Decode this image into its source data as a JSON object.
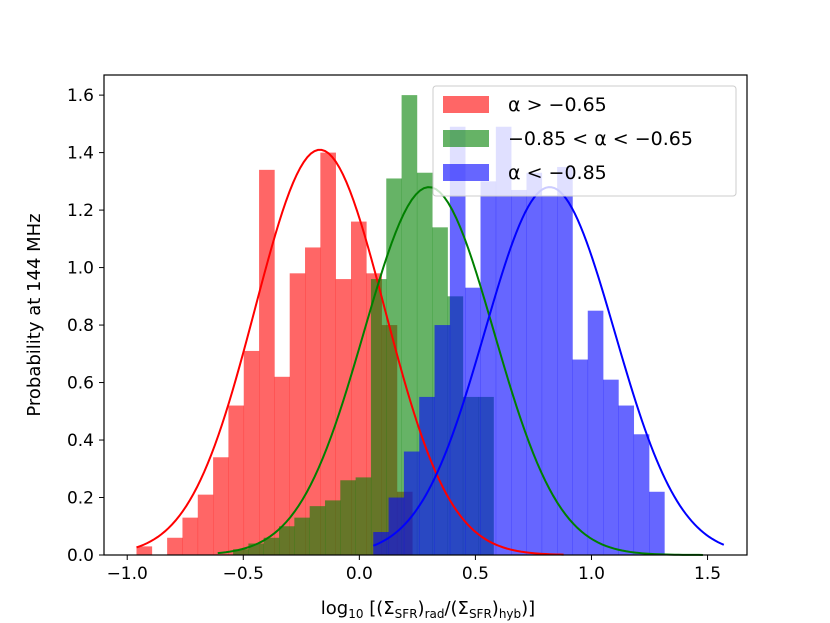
{
  "chart_data": {
    "type": "bar",
    "xlabel": "log₁₀ [(ΣSFR)rad/(ΣSFR)hyb]",
    "ylabel": "Probability at 144 MHz",
    "xlim": [
      -1.1,
      1.67
    ],
    "ylim": [
      0.0,
      1.67
    ],
    "xticks": [
      "−1.0",
      "−0.5",
      "0.0",
      "0.5",
      "1.0",
      "1.5"
    ],
    "yticks": [
      "0.0",
      "0.2",
      "0.4",
      "0.6",
      "0.8",
      "1.0",
      "1.2",
      "1.4",
      "1.6"
    ],
    "grid": false,
    "legend_position": "top-right",
    "series": [
      {
        "name": "α > −0.65",
        "color": "#ff0000",
        "fit_color": "#ff0000",
        "bin_width": 0.066,
        "bins_start": -0.96,
        "values": [
          0.03,
          0.0,
          0.06,
          0.13,
          0.21,
          0.34,
          0.52,
          0.71,
          1.34,
          0.62,
          0.98,
          1.07,
          1.4,
          0.96,
          1.16,
          0.98,
          0.8,
          0.22,
          0.0
        ],
        "fit": {
          "mu": -0.17,
          "sigma": 0.28,
          "peak": 1.41,
          "xmin": -0.96,
          "xmax": 0.88
        }
      },
      {
        "name": "−0.85 < α < −0.65",
        "color": "#008000",
        "fit_color": "#008000",
        "bin_width": 0.066,
        "bins_start": -0.61,
        "values": [
          0.0,
          0.02,
          0.04,
          0.06,
          0.1,
          0.13,
          0.17,
          0.19,
          0.26,
          0.27,
          0.96,
          1.31,
          1.6,
          1.33,
          1.14,
          0.9,
          0.55,
          0.55
        ],
        "fit": {
          "mu": 0.3,
          "sigma": 0.28,
          "peak": 1.28,
          "xmin": -0.61,
          "xmax": 1.48
        }
      },
      {
        "name": "α < −0.85",
        "color": "#0000ff",
        "fit_color": "#0000ff",
        "bin_width": 0.066,
        "bins_start": 0.06,
        "values": [
          0.08,
          0.2,
          0.36,
          0.55,
          0.8,
          1.49,
          0.93,
          1.3,
          1.49,
          1.27,
          1.33,
          1.25,
          1.35,
          0.68,
          0.85,
          0.61,
          0.52,
          0.42,
          0.22
        ],
        "fit": {
          "mu": 0.82,
          "sigma": 0.28,
          "peak": 1.28,
          "xmin": 0.06,
          "xmax": 1.57
        }
      }
    ]
  }
}
